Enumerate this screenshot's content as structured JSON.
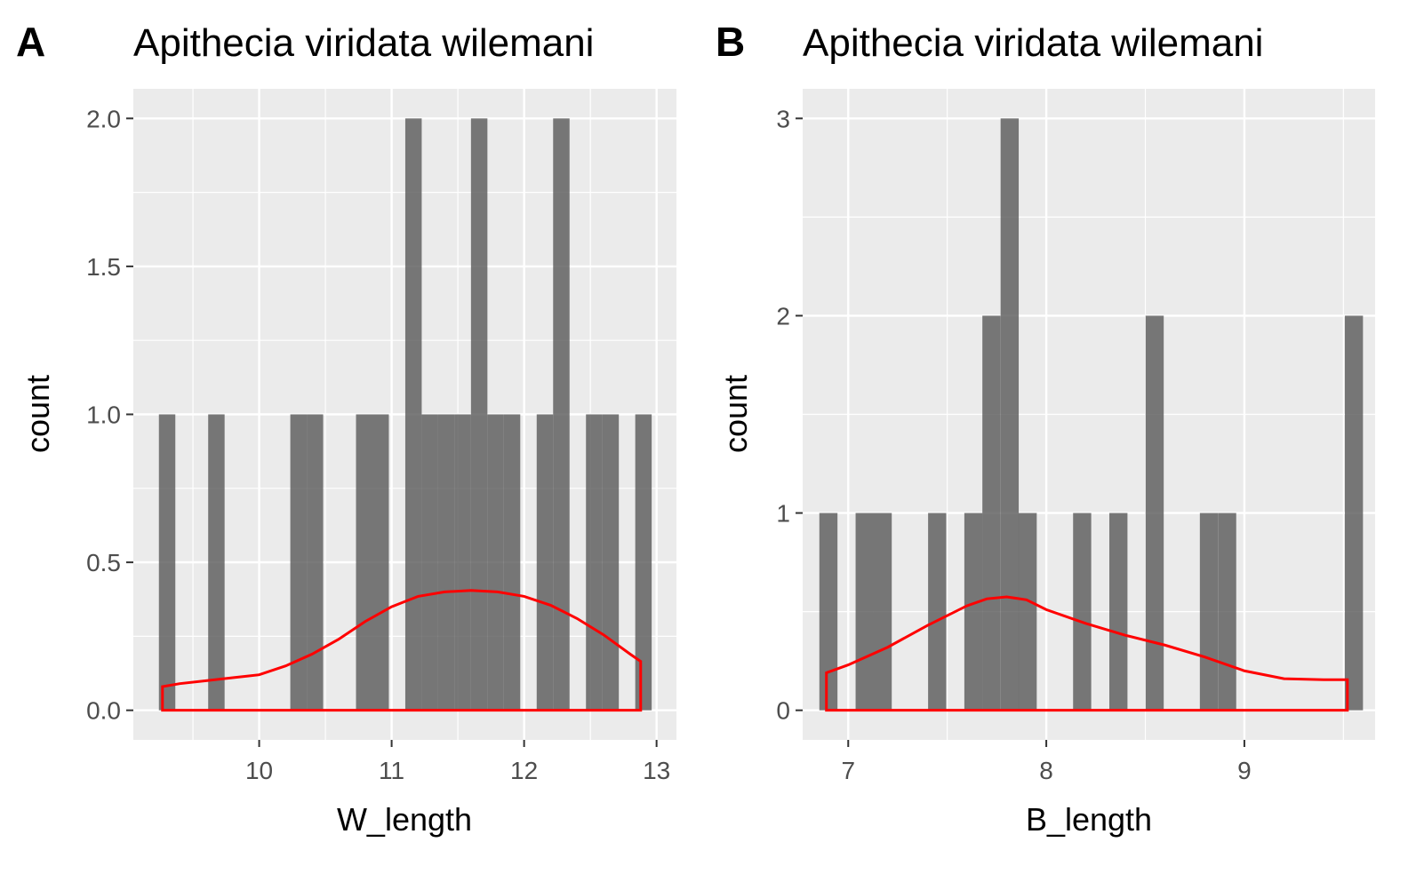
{
  "chart_data": [
    {
      "type": "bar",
      "panel_tag": "A",
      "title": "Apithecia viridata wilemani",
      "xlabel": "W_length",
      "ylabel": "count",
      "xlim": [
        9.05,
        13.15
      ],
      "ylim": [
        -0.1,
        2.1
      ],
      "x_ticks": [
        10,
        11,
        12,
        13
      ],
      "y_ticks": [
        0.0,
        0.5,
        1.0,
        1.5,
        2.0
      ],
      "x_tick_labels": [
        "10",
        "11",
        "12",
        "13"
      ],
      "y_tick_labels": [
        "0.0",
        "0.5",
        "1.0",
        "1.5",
        "2.0"
      ],
      "binwidth": 0.124,
      "bins": [
        {
          "x": 9.305,
          "count": 1
        },
        {
          "x": 9.677,
          "count": 1
        },
        {
          "x": 10.297,
          "count": 1
        },
        {
          "x": 10.421,
          "count": 1
        },
        {
          "x": 10.793,
          "count": 1
        },
        {
          "x": 10.917,
          "count": 1
        },
        {
          "x": 11.165,
          "count": 2
        },
        {
          "x": 11.289,
          "count": 1
        },
        {
          "x": 11.413,
          "count": 1
        },
        {
          "x": 11.537,
          "count": 1
        },
        {
          "x": 11.661,
          "count": 2
        },
        {
          "x": 11.785,
          "count": 1
        },
        {
          "x": 11.909,
          "count": 1
        },
        {
          "x": 12.157,
          "count": 1
        },
        {
          "x": 12.281,
          "count": 2
        },
        {
          "x": 12.529,
          "count": 1
        },
        {
          "x": 12.653,
          "count": 1
        },
        {
          "x": 12.901,
          "count": 1
        }
      ],
      "density_color": "#ff0000",
      "density": {
        "x": [
          9.27,
          9.4,
          9.6,
          9.8,
          10.0,
          10.2,
          10.4,
          10.6,
          10.8,
          11.0,
          11.2,
          11.4,
          11.6,
          11.8,
          12.0,
          12.2,
          12.4,
          12.6,
          12.8,
          12.88
        ],
        "y": [
          0.08,
          0.09,
          0.1,
          0.11,
          0.12,
          0.15,
          0.19,
          0.24,
          0.3,
          0.35,
          0.385,
          0.4,
          0.405,
          0.4,
          0.385,
          0.355,
          0.31,
          0.255,
          0.19,
          0.165
        ]
      }
    },
    {
      "type": "bar",
      "panel_tag": "B",
      "title": "Apithecia viridata wilemani",
      "xlabel": "B_length",
      "ylabel": "count",
      "xlim": [
        6.77,
        9.66
      ],
      "ylim": [
        -0.15,
        3.15
      ],
      "x_ticks": [
        7,
        8,
        9
      ],
      "y_ticks": [
        0,
        1,
        2,
        3
      ],
      "x_tick_labels": [
        "7",
        "8",
        "9"
      ],
      "y_tick_labels": [
        "0",
        "1",
        "2",
        "3"
      ],
      "binwidth": 0.0915,
      "bins": [
        {
          "x": 6.9,
          "count": 1
        },
        {
          "x": 7.083,
          "count": 1
        },
        {
          "x": 7.174,
          "count": 1
        },
        {
          "x": 7.449,
          "count": 1
        },
        {
          "x": 7.632,
          "count": 1
        },
        {
          "x": 7.723,
          "count": 2
        },
        {
          "x": 7.815,
          "count": 3
        },
        {
          "x": 7.906,
          "count": 1
        },
        {
          "x": 8.181,
          "count": 1
        },
        {
          "x": 8.364,
          "count": 1
        },
        {
          "x": 8.547,
          "count": 2
        },
        {
          "x": 8.821,
          "count": 1
        },
        {
          "x": 8.913,
          "count": 1
        },
        {
          "x": 9.553,
          "count": 2
        }
      ],
      "density_color": "#ff0000",
      "density": {
        "x": [
          6.89,
          7.0,
          7.2,
          7.4,
          7.6,
          7.7,
          7.8,
          7.9,
          8.0,
          8.2,
          8.4,
          8.6,
          8.8,
          9.0,
          9.2,
          9.4,
          9.52
        ],
        "y": [
          0.19,
          0.23,
          0.32,
          0.43,
          0.53,
          0.565,
          0.575,
          0.56,
          0.51,
          0.44,
          0.38,
          0.33,
          0.27,
          0.2,
          0.16,
          0.155,
          0.155
        ]
      }
    }
  ]
}
